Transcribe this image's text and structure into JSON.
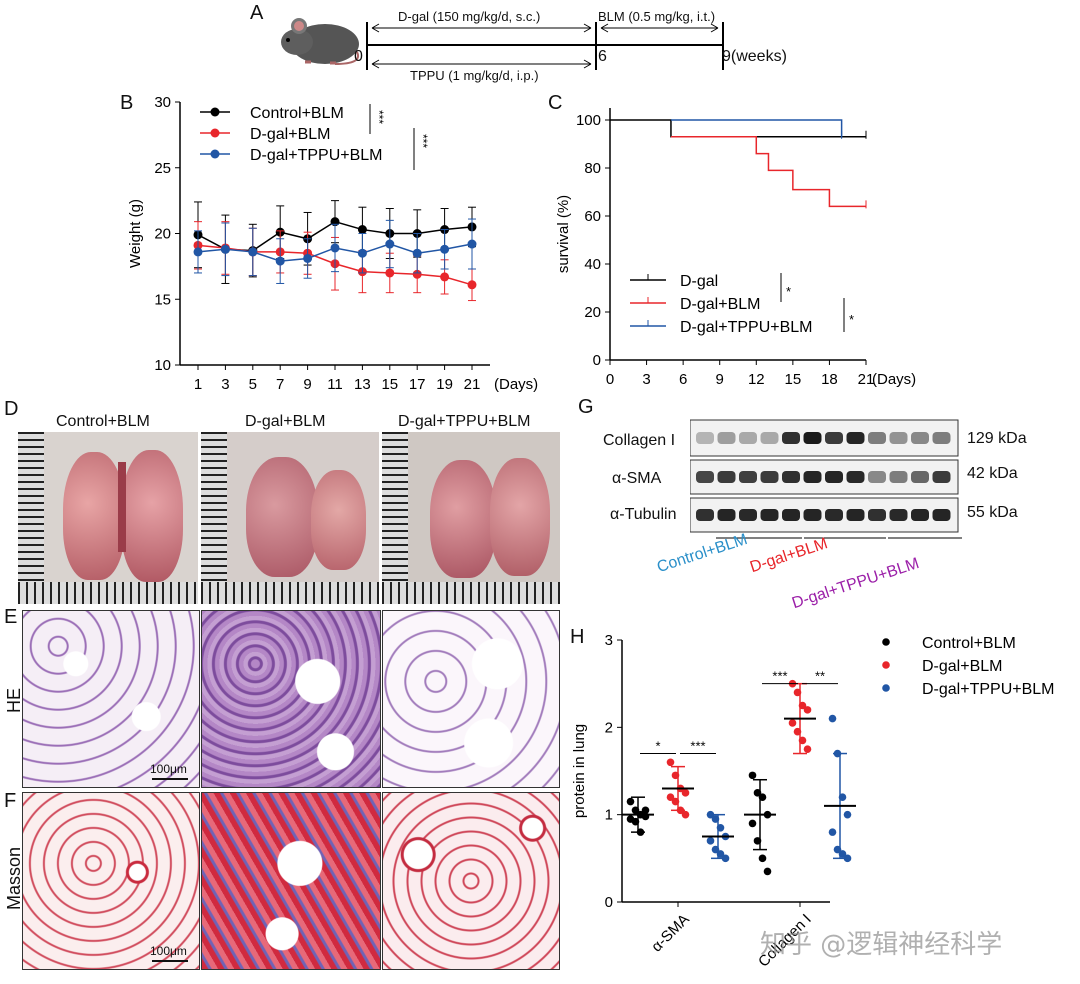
{
  "panel_labels": {
    "a": "A",
    "b": "B",
    "c": "C",
    "d": "D",
    "e": "E",
    "f": "F",
    "g": "G",
    "h": "H"
  },
  "timeline": {
    "dgal_label": "D-gal (150 mg/kg/d, s.c.)",
    "blm_label": "BLM (0.5 mg/kg, i.t.)",
    "tppu_label": "TPPU (1 mg/kg/d, i.p.)",
    "t0": "0",
    "t6": "6",
    "t9": "9(weeks)"
  },
  "colors": {
    "control": "#000000",
    "dgal": "#e8262b",
    "tppu": "#2156a5",
    "blue_text": "#2a8fc9",
    "red_text": "#e8262b",
    "purple_text": "#9b1fa8"
  },
  "chart_data": [
    {
      "type": "line",
      "title": "",
      "xlabel": "(Days)",
      "ylabel": "Weight (g)",
      "x": [
        1,
        3,
        5,
        7,
        9,
        11,
        13,
        15,
        17,
        19,
        21
      ],
      "ylim": [
        10,
        30
      ],
      "yticks": [
        "10",
        "15",
        "20",
        "25",
        "30"
      ],
      "xticks": [
        "1",
        "3",
        "5",
        "7",
        "9",
        "11",
        "13",
        "15",
        "17",
        "19",
        "21"
      ],
      "series": [
        {
          "name": "Control+BLM",
          "color": "#000000",
          "values": [
            19.9,
            18.8,
            18.7,
            20.1,
            19.6,
            20.9,
            20.3,
            20.0,
            20.0,
            20.3,
            20.5
          ],
          "err": [
            2.5,
            2.6,
            2.0,
            2.0,
            2.0,
            1.6,
            1.7,
            1.9,
            1.8,
            1.6,
            1.5
          ]
        },
        {
          "name": "D-gal+BLM",
          "color": "#e8262b",
          "values": [
            19.1,
            18.9,
            18.6,
            18.6,
            18.5,
            17.7,
            17.1,
            17.0,
            16.9,
            16.7,
            16.1
          ],
          "err": [
            1.8,
            2.0,
            1.8,
            1.6,
            1.6,
            2.0,
            1.6,
            1.5,
            1.4,
            1.3,
            1.2
          ]
        },
        {
          "name": "D-gal+TPPU+BLM",
          "color": "#2156a5",
          "values": [
            18.6,
            18.8,
            18.6,
            17.9,
            18.1,
            18.9,
            18.5,
            19.2,
            18.5,
            18.8,
            19.2
          ],
          "err": [
            1.6,
            2.0,
            1.8,
            1.7,
            1.5,
            1.8,
            1.5,
            1.8,
            1.5,
            1.5,
            1.9
          ]
        }
      ],
      "sig": [
        "***",
        "***"
      ]
    },
    {
      "type": "line",
      "title": "",
      "xlabel": "(Days)",
      "ylabel": "survival (%)",
      "xlim": [
        0,
        21
      ],
      "ylim": [
        0,
        100
      ],
      "xticks": [
        "0",
        "3",
        "6",
        "9",
        "12",
        "15",
        "18",
        "21"
      ],
      "yticks": [
        "0",
        "20",
        "40",
        "60",
        "80",
        "100"
      ],
      "series": [
        {
          "name": "D-gal",
          "color": "#000000",
          "x": [
            0,
            5,
            5,
            21
          ],
          "values": [
            100,
            100,
            93,
            93
          ]
        },
        {
          "name": "D-gal+BLM",
          "color": "#e8262b",
          "x": [
            5,
            12,
            12,
            13,
            13,
            15,
            15,
            18,
            18,
            21
          ],
          "values": [
            93,
            93,
            86,
            86,
            79,
            79,
            71,
            71,
            64,
            64
          ]
        },
        {
          "name": "D-gal+TPPU+BLM",
          "color": "#2156a5",
          "x": [
            5,
            19,
            19
          ],
          "values": [
            100,
            100,
            93
          ]
        }
      ],
      "sig": [
        "*",
        "*"
      ]
    },
    {
      "type": "scatter",
      "title": "",
      "xlabel": "",
      "ylabel": "protein in lung",
      "ylim": [
        0,
        3
      ],
      "yticks": [
        "0",
        "1",
        "2",
        "3"
      ],
      "categories": [
        "α-SMA",
        "Collagen I"
      ],
      "series": [
        {
          "name": "Control+BLM",
          "color": "#000000",
          "means": [
            1.0,
            1.0
          ],
          "sd": [
            0.2,
            0.4
          ],
          "points": [
            [
              1.15,
              1.05,
              1.0,
              0.98,
              0.95,
              0.92,
              0.8,
              1.05
            ],
            [
              1.45,
              1.25,
              1.2,
              1.0,
              0.9,
              0.7,
              0.5,
              0.35
            ]
          ]
        },
        {
          "name": "D-gal+BLM",
          "color": "#e8262b",
          "means": [
            1.3,
            2.1
          ],
          "sd": [
            0.25,
            0.4
          ],
          "points": [
            [
              1.6,
              1.45,
              1.3,
              1.25,
              1.2,
              1.15,
              1.05,
              1.0
            ],
            [
              2.5,
              2.4,
              2.25,
              2.2,
              2.05,
              1.95,
              1.85,
              1.75
            ]
          ]
        },
        {
          "name": "D-gal+TPPU+BLM",
          "color": "#2156a5",
          "means": [
            0.75,
            1.1
          ],
          "sd": [
            0.25,
            0.6
          ],
          "points": [
            [
              1.0,
              0.95,
              0.85,
              0.75,
              0.7,
              0.6,
              0.55,
              0.5
            ],
            [
              2.1,
              1.7,
              1.2,
              1.0,
              0.8,
              0.6,
              0.55,
              0.5
            ]
          ]
        }
      ],
      "sig": {
        "asma": [
          "*",
          "***"
        ],
        "col": [
          "***",
          "**"
        ]
      }
    }
  ],
  "photo_labels": [
    "Control+BLM",
    "D-gal+BLM",
    "D-gal+TPPU+BLM"
  ],
  "row_labels": {
    "he": "HE",
    "masson": "Masson"
  },
  "scalebar": "100μm",
  "blot": {
    "rows": [
      {
        "name": "Collagen I",
        "kda": "129 kDa"
      },
      {
        "name": "α-SMA",
        "kda": "42 kDa"
      },
      {
        "name": "α-Tubulin",
        "kda": "55 kDa"
      }
    ],
    "groups": [
      "Control+BLM",
      "D-gal+BLM",
      "D-gal+TPPU+BLM"
    ]
  },
  "watermark": "知乎 @逻辑神经科学"
}
